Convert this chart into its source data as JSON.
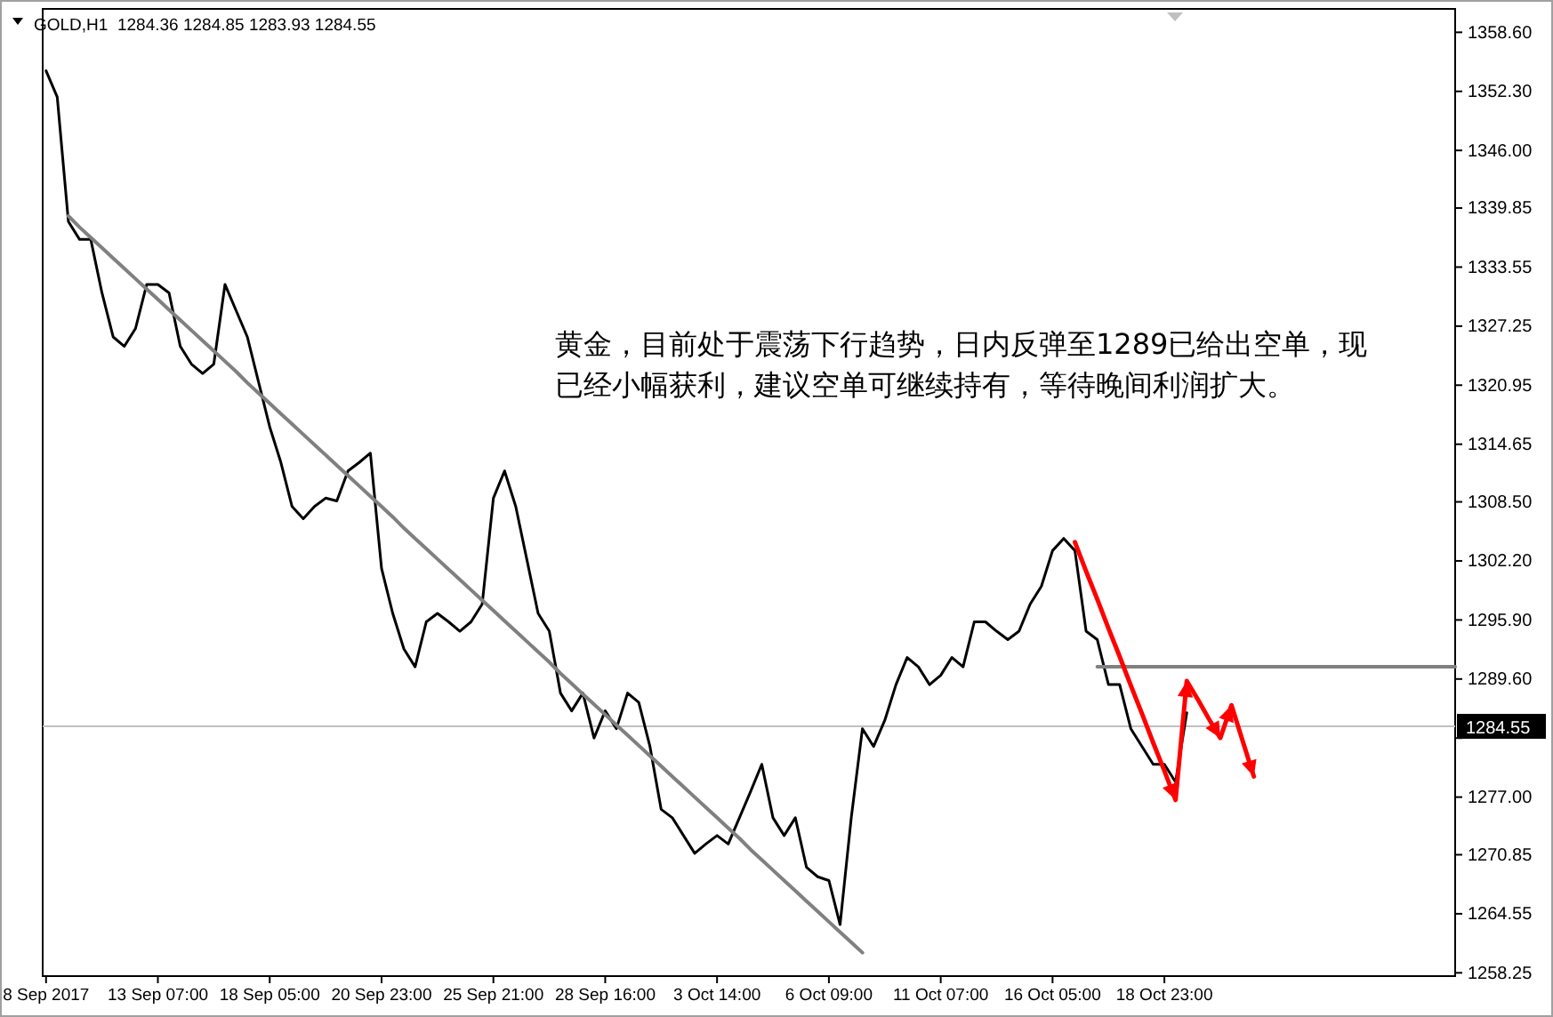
{
  "chart_data": {
    "type": "line",
    "title": "GOLD,H1  1284.36 1284.85 1283.93 1284.55",
    "annotations": [
      "黄金，目前处于震荡下行趋势，日内反弹至1289已给出空单，现已经小幅获利，建议空单可继续持有，等待晚间利润扩大。"
    ],
    "categories": [
      "8 Sep 2017",
      null,
      null,
      null,
      null,
      null,
      null,
      null,
      null,
      null,
      "13 Sep 07:00",
      null,
      null,
      null,
      null,
      null,
      null,
      null,
      null,
      null,
      "18 Sep 05:00",
      null,
      null,
      null,
      null,
      null,
      null,
      null,
      null,
      null,
      "20 Sep 23:00",
      null,
      null,
      null,
      null,
      null,
      null,
      null,
      null,
      null,
      "25 Sep 21:00",
      null,
      null,
      null,
      null,
      null,
      null,
      null,
      null,
      null,
      "28 Sep 16:00",
      null,
      null,
      null,
      null,
      null,
      null,
      null,
      null,
      null,
      "3 Oct 14:00",
      null,
      null,
      null,
      null,
      null,
      null,
      null,
      null,
      null,
      "6 Oct 09:00",
      null,
      null,
      null,
      null,
      null,
      null,
      null,
      null,
      null,
      "11 Oct 07:00",
      null,
      null,
      null,
      null,
      null,
      null,
      null,
      null,
      null,
      "16 Oct 05:00",
      null,
      null,
      null,
      null,
      null,
      null,
      null,
      null,
      null,
      "18 Oct 23:00",
      null,
      null,
      null,
      null,
      null,
      null,
      null,
      null,
      null,
      null,
      null,
      null,
      null,
      null,
      null,
      null,
      null,
      null,
      null,
      null,
      null,
      null,
      null,
      null,
      null,
      null
    ],
    "ylim": [
      1257.9,
      1361.1
    ],
    "yticks": [
      {
        "value": 1358.6,
        "label": "1358.60"
      },
      {
        "value": 1352.3,
        "label": "1352.30"
      },
      {
        "value": 1346,
        "label": "1346.00"
      },
      {
        "value": 1339.85,
        "label": "1339.85"
      },
      {
        "value": 1333.55,
        "label": "1333.55"
      },
      {
        "value": 1327.25,
        "label": "1327.25"
      },
      {
        "value": 1320.95,
        "label": "1320.95"
      },
      {
        "value": 1314.65,
        "label": "1314.65"
      },
      {
        "value": 1308.5,
        "label": "1308.50"
      },
      {
        "value": 1302.2,
        "label": "1302.20"
      },
      {
        "value": 1295.9,
        "label": "1295.90"
      },
      {
        "value": 1289.6,
        "label": "1289.60"
      },
      {
        "value": 1283.3,
        "label": null
      },
      {
        "value": 1277,
        "label": "1277.00"
      },
      {
        "value": 1270.85,
        "label": "1270.85"
      },
      {
        "value": 1264.55,
        "label": "1264.55"
      },
      {
        "value": 1258.25,
        "label": "1258.25"
      }
    ],
    "ref_lines": [
      {
        "axis": "y",
        "value": 1284.55,
        "label": "1284.55",
        "color": "#c0c0c0"
      }
    ],
    "series": [
      {
        "color": "#000000",
        "values": [
          1354.5,
          1351.7,
          1338.4,
          1336.5,
          1336.5,
          1330.8,
          1326.1,
          1325.1,
          1327.0,
          1331.7,
          1331.7,
          1330.8,
          1325.1,
          1323.2,
          1322.2,
          1323.2,
          1331.7,
          1328.9,
          1326.1,
          1321.3,
          1316.5,
          1312.7,
          1308.0,
          1306.7,
          1308.0,
          1308.9,
          1308.6,
          1311.8,
          1312.7,
          1313.7,
          1301.4,
          1296.6,
          1292.8,
          1290.9,
          1295.7,
          1296.6,
          1295.7,
          1294.7,
          1295.7,
          1297.6,
          1308.9,
          1311.8,
          1308.0,
          1302.3,
          1296.6,
          1294.7,
          1288.1,
          1286.2,
          1288.1,
          1283.3,
          1286.2,
          1284.3,
          1288.1,
          1287.1,
          1282.4,
          1275.7,
          1274.8,
          1272.9,
          1271.0,
          1272.0,
          1272.9,
          1272.0,
          1274.8,
          1277.6,
          1280.5,
          1274.8,
          1272.9,
          1274.8,
          1269.5,
          1268.5,
          1268.1,
          1263.4,
          1274.8,
          1284.3,
          1282.4,
          1285.2,
          1289.0,
          1291.9,
          1290.9,
          1289.0,
          1290.0,
          1291.9,
          1290.9,
          1295.7,
          1295.7,
          1294.7,
          1293.8,
          1294.7,
          1297.6,
          1299.5,
          1303.3,
          1304.6,
          1303.3,
          1294.7,
          1293.8,
          1289.0,
          1289.0,
          1284.3,
          1282.4,
          1280.5,
          1280.5,
          1278.6,
          1286.0,
          null,
          null,
          null,
          null,
          null,
          null,
          null,
          null,
          null,
          null,
          null,
          null,
          null,
          null,
          null,
          null,
          null,
          null,
          null,
          null,
          null,
          null,
          null,
          null
        ]
      },
      {
        "color": "#808080",
        "values": [
          null,
          null,
          1339.0,
          1337.8,
          1336.7,
          1335.6,
          1334.5,
          1333.4,
          1332.3,
          1331.2,
          1330.1,
          1329.0,
          1327.9,
          1326.8,
          1325.7,
          1324.6,
          1323.5,
          1322.4,
          1321.2,
          1320.1,
          1319.0,
          1317.9,
          1316.8,
          1315.7,
          1314.6,
          1313.5,
          1312.4,
          1311.3,
          1310.2,
          1309.1,
          1308.0,
          1306.9,
          1305.7,
          1304.6,
          1303.5,
          1302.4,
          1301.3,
          1300.2,
          1299.1,
          1298.0,
          1296.9,
          1295.8,
          1294.7,
          1293.6,
          1292.5,
          1291.4,
          1290.2,
          1289.1,
          1288.0,
          1286.9,
          1285.8,
          1284.7,
          1283.6,
          1282.5,
          1281.4,
          1280.3,
          1279.2,
          1278.1,
          1277.0,
          1275.9,
          1274.8,
          1273.7,
          1272.6,
          1271.4,
          1270.3,
          1269.2,
          1268.1,
          1267.0,
          1265.9,
          1264.8,
          1263.7,
          1262.6,
          1261.5,
          1260.4,
          null,
          null,
          null,
          null,
          null,
          null,
          null,
          null,
          null,
          null,
          null,
          null,
          null,
          null,
          null,
          null,
          null,
          null,
          null,
          null,
          null,
          null,
          null,
          null,
          null,
          null,
          null,
          null,
          null,
          null,
          null,
          null,
          null,
          null,
          null,
          null,
          null,
          null,
          null,
          null,
          null,
          null,
          null,
          null,
          null,
          null,
          null,
          null,
          null,
          null,
          null,
          null,
          null
        ]
      },
      {
        "color": "#808080",
        "values": [
          null,
          null,
          null,
          null,
          null,
          null,
          null,
          null,
          null,
          null,
          null,
          null,
          null,
          null,
          null,
          null,
          null,
          null,
          null,
          null,
          null,
          null,
          null,
          null,
          null,
          null,
          null,
          null,
          null,
          null,
          null,
          null,
          null,
          null,
          null,
          null,
          null,
          null,
          null,
          null,
          null,
          null,
          null,
          null,
          null,
          null,
          null,
          null,
          null,
          null,
          null,
          null,
          null,
          null,
          null,
          null,
          null,
          null,
          null,
          null,
          null,
          null,
          null,
          null,
          null,
          null,
          null,
          null,
          null,
          null,
          null,
          null,
          null,
          null,
          null,
          null,
          null,
          null,
          null,
          null,
          null,
          null,
          null,
          null,
          null,
          null,
          null,
          null,
          null,
          null,
          null,
          null,
          null,
          null,
          1290.9,
          1290.9,
          1290.9,
          1290.9,
          1290.9,
          1290.9,
          1290.9,
          1290.9,
          1290.9,
          1290.9,
          1290.9,
          1290.9,
          1290.9,
          1290.9,
          1290.9,
          1290.9,
          1290.9,
          1290.9,
          1290.9,
          1290.9,
          1290.9,
          1290.9,
          1290.9,
          1290.9,
          1290.9,
          1290.9,
          1290.9,
          1290.9,
          1290.9,
          1290.9,
          1290.9,
          1290.9,
          1290.9
        ]
      },
      {
        "color": "#ff0000",
        "values": [
          null,
          null,
          null,
          null,
          null,
          null,
          null,
          null,
          null,
          null,
          null,
          null,
          null,
          null,
          null,
          null,
          null,
          null,
          null,
          null,
          null,
          null,
          null,
          null,
          null,
          null,
          null,
          null,
          null,
          null,
          null,
          null,
          null,
          null,
          null,
          null,
          null,
          null,
          null,
          null,
          null,
          null,
          null,
          null,
          null,
          null,
          null,
          null,
          null,
          null,
          null,
          null,
          null,
          null,
          null,
          null,
          null,
          null,
          null,
          null,
          null,
          null,
          null,
          null,
          null,
          null,
          null,
          null,
          null,
          null,
          null,
          null,
          null,
          null,
          null,
          null,
          null,
          null,
          null,
          null,
          null,
          null,
          null,
          null,
          null,
          null,
          null,
          null,
          null,
          null,
          null,
          null,
          1304.2,
          1301.1,
          1298.1,
          1295.0,
          1292.0,
          1288.9,
          1285.9,
          1282.8,
          1279.8,
          1276.7,
          1289.4,
          1287.4,
          1285.3,
          1283.3,
          1286.8,
          1283.0,
          1279.2,
          null,
          null,
          null,
          null,
          null,
          null,
          null,
          null,
          null,
          null,
          null,
          null,
          null,
          null,
          null,
          null,
          null,
          null
        ]
      }
    ]
  }
}
